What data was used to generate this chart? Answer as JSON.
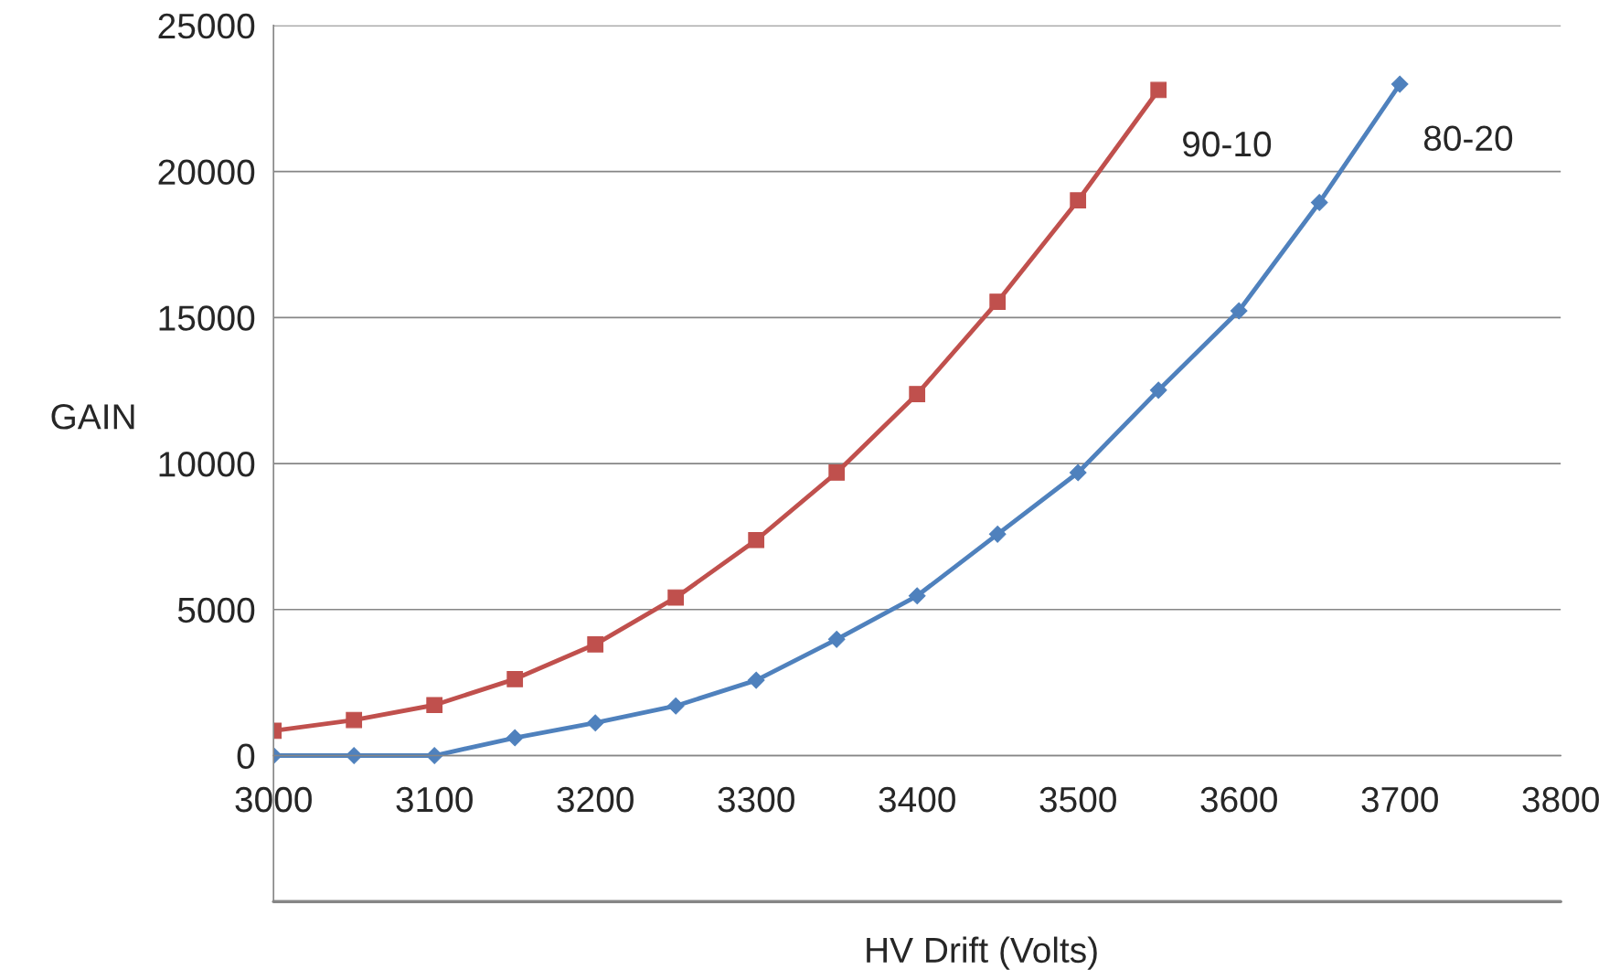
{
  "chart_data": {
    "type": "line",
    "xlabel": "HV Drift (Volts)",
    "ylabel": "GAIN",
    "xlim": [
      3000,
      3800
    ],
    "xticks": [
      3000,
      3100,
      3200,
      3300,
      3400,
      3500,
      3600,
      3700,
      3800
    ],
    "ylim": [
      -5000,
      25000
    ],
    "yticks": [
      0,
      5000,
      10000,
      15000,
      20000,
      25000
    ],
    "grid": "y",
    "legend": false,
    "series": [
      {
        "name": "90-10",
        "color": "#c0504d",
        "marker": "square",
        "x": [
          3000,
          3050,
          3100,
          3150,
          3200,
          3250,
          3300,
          3350,
          3400,
          3450,
          3500,
          3550
        ],
        "values": [
          850,
          1220,
          1730,
          2620,
          3810,
          5410,
          7380,
          9690,
          12380,
          15540,
          19010,
          22790
        ]
      },
      {
        "name": "80-20",
        "color": "#4f81bd",
        "marker": "diamond",
        "x": [
          3000,
          3050,
          3100,
          3150,
          3200,
          3250,
          3300,
          3350,
          3400,
          3450,
          3500,
          3550,
          3600,
          3650,
          3700
        ],
        "values": [
          0,
          0,
          0,
          610,
          1120,
          1700,
          2580,
          3980,
          5470,
          7580,
          9690,
          12510,
          15230,
          18940,
          22990
        ]
      }
    ]
  }
}
